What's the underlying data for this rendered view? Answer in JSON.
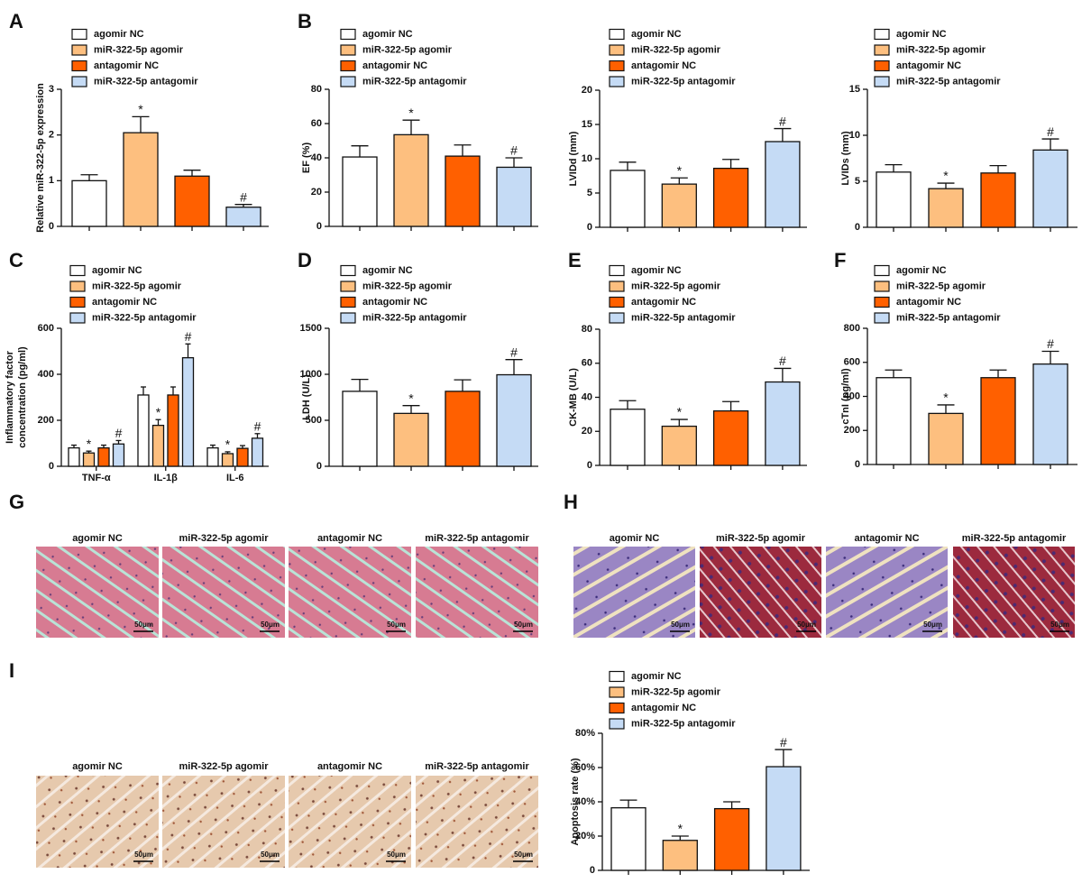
{
  "chart_data": [
    {
      "type": "bar",
      "panel": "A",
      "ylabel": [
        "Relative miR-322-5p expression"
      ],
      "legend": [
        "agomir NC",
        "miR-322-5p agomir",
        "antagomir NC",
        "miR-322-5p antagomir"
      ],
      "colors": [
        "#ffffff",
        "#fdbf7f",
        "#ff6000",
        "#c5dbf5"
      ],
      "values": [
        1.0,
        2.05,
        1.1,
        0.42
      ],
      "errors": [
        0.13,
        0.35,
        0.13,
        0.06
      ],
      "annotations": [
        null,
        "*",
        null,
        "#"
      ],
      "ylim": [
        0,
        3
      ],
      "yticks": [
        0,
        1,
        2,
        3
      ]
    },
    {
      "type": "bar",
      "panel": "B",
      "ylabel": [
        "EF (%)"
      ],
      "legend": [
        "agomir NC",
        "miR-322-5p agomir",
        "antagomir NC",
        "miR-322-5p antagomir"
      ],
      "colors": [
        "#ffffff",
        "#fdbf7f",
        "#ff6000",
        "#c5dbf5"
      ],
      "values": [
        40.5,
        53.5,
        41,
        34.5
      ],
      "errors": [
        6.5,
        8.5,
        6.5,
        5.5
      ],
      "annotations": [
        null,
        "*",
        null,
        "#"
      ],
      "ylim": [
        0,
        80
      ],
      "yticks": [
        0,
        20,
        40,
        60,
        80
      ]
    },
    {
      "type": "bar",
      "ylabel": [
        "LVIDd (mm)"
      ],
      "legend": [
        "agomir NC",
        "miR-322-5p agomir",
        "antagomir NC",
        "miR-322-5p antagomir"
      ],
      "colors": [
        "#ffffff",
        "#fdbf7f",
        "#ff6000",
        "#c5dbf5"
      ],
      "values": [
        8.3,
        6.3,
        8.6,
        12.5
      ],
      "errors": [
        1.2,
        0.9,
        1.3,
        1.9
      ],
      "annotations": [
        null,
        "*",
        null,
        "#"
      ],
      "ylim": [
        0,
        20
      ],
      "yticks": [
        0,
        5,
        10,
        15,
        20
      ]
    },
    {
      "type": "bar",
      "ylabel": [
        "LVIDs (mm)"
      ],
      "legend": [
        "agomir NC",
        "miR-322-5p agomir",
        "antagomir NC",
        "miR-322-5p antagomir"
      ],
      "colors": [
        "#ffffff",
        "#fdbf7f",
        "#ff6000",
        "#c5dbf5"
      ],
      "values": [
        6.0,
        4.2,
        5.9,
        8.4
      ],
      "errors": [
        0.8,
        0.6,
        0.8,
        1.2
      ],
      "annotations": [
        null,
        "*",
        null,
        "#"
      ],
      "ylim": [
        0,
        15
      ],
      "yticks": [
        0,
        5,
        10,
        15
      ]
    },
    {
      "type": "grouped",
      "panel": "C",
      "ylabel": [
        "Inflammatory factor",
        "concentration (pg/ml)"
      ],
      "categories": [
        "TNF-α",
        "IL-1β",
        "IL-6"
      ],
      "series": [
        {
          "name": "agomir NC",
          "color": "#ffffff",
          "values": [
            80,
            310,
            80
          ],
          "errors": [
            12,
            35,
            12
          ],
          "annotations": [
            null,
            null,
            null
          ]
        },
        {
          "name": "miR-322-5p agomir",
          "color": "#fdbf7f",
          "values": [
            58,
            178,
            55
          ],
          "errors": [
            8,
            25,
            8
          ],
          "annotations": [
            "*",
            "*",
            "*"
          ]
        },
        {
          "name": "antagomir NC",
          "color": "#ff6000",
          "values": [
            80,
            310,
            78
          ],
          "errors": [
            12,
            35,
            12
          ],
          "annotations": [
            null,
            null,
            null
          ]
        },
        {
          "name": "miR-322-5p antagomir",
          "color": "#c5dbf5",
          "values": [
            97,
            472,
            122
          ],
          "errors": [
            15,
            60,
            20
          ],
          "annotations": [
            "#",
            "#",
            "#"
          ]
        }
      ],
      "ylim": [
        0,
        600
      ],
      "yticks": [
        0,
        200,
        400,
        600
      ]
    },
    {
      "type": "bar",
      "panel": "D",
      "ylabel": [
        "LDH (U/L)"
      ],
      "legend": [
        "agomir NC",
        "miR-322-5p agomir",
        "antagomir NC",
        "miR-322-5p antagomir"
      ],
      "colors": [
        "#ffffff",
        "#fdbf7f",
        "#ff6000",
        "#c5dbf5"
      ],
      "values": [
        815,
        575,
        815,
        995
      ],
      "errors": [
        130,
        85,
        125,
        165
      ],
      "annotations": [
        null,
        "*",
        null,
        "#"
      ],
      "ylim": [
        0,
        1500
      ],
      "yticks": [
        0,
        500,
        1000,
        1500
      ]
    },
    {
      "type": "bar",
      "panel": "E",
      "ylabel": [
        "CK-MB (U/L)"
      ],
      "legend": [
        "agomir NC",
        "miR-322-5p agomir",
        "antagomir NC",
        "miR-322-5p antagomir"
      ],
      "colors": [
        "#ffffff",
        "#fdbf7f",
        "#ff6000",
        "#c5dbf5"
      ],
      "values": [
        33,
        23,
        32,
        49
      ],
      "errors": [
        5,
        4,
        5.5,
        8
      ],
      "annotations": [
        null,
        "*",
        null,
        "#"
      ],
      "ylim": [
        0,
        80
      ],
      "yticks": [
        0,
        20,
        40,
        60,
        80
      ]
    },
    {
      "type": "bar",
      "panel": "F",
      "ylabel": [
        "cTnI (pg/ml)"
      ],
      "legend": [
        "agomir NC",
        "miR-322-5p agomir",
        "antagomir NC",
        "miR-322-5p antagomir"
      ],
      "colors": [
        "#ffffff",
        "#fdbf7f",
        "#ff6000",
        "#c5dbf5"
      ],
      "values": [
        510,
        300,
        510,
        590
      ],
      "errors": [
        45,
        50,
        45,
        75
      ],
      "annotations": [
        null,
        "*",
        null,
        "#"
      ],
      "ylim": [
        0,
        800
      ],
      "yticks": [
        0,
        200,
        400,
        600,
        800
      ]
    },
    {
      "type": "bar",
      "ylabel": [
        "Apoptosis rate (%)"
      ],
      "legend": [
        "agomir NC",
        "miR-322-5p agomir",
        "antagomir NC",
        "miR-322-5p antagomir"
      ],
      "colors": [
        "#ffffff",
        "#fdbf7f",
        "#ff6000",
        "#c5dbf5"
      ],
      "values": [
        36.5,
        17.5,
        36,
        60.5
      ],
      "errors": [
        4.5,
        2.5,
        4,
        10
      ],
      "annotations": [
        null,
        "*",
        null,
        "#"
      ],
      "ylim": [
        0,
        80
      ],
      "yticks": [
        0,
        {
          "value": 20,
          "label": "20%"
        },
        {
          "value": 40,
          "label": "40%"
        },
        {
          "value": 60,
          "label": "60%"
        },
        {
          "value": 80,
          "label": "80%"
        }
      ]
    }
  ],
  "image_panels": [
    {
      "panel": "G",
      "labels": [
        "agomir NC",
        "miR-322-5p agomir",
        "antagomir NC",
        "miR-322-5p antagomir"
      ],
      "scale_bar": "50μm"
    },
    {
      "panel": "H",
      "labels": [
        "agomir NC",
        "miR-322-5p agomir",
        "antagomir NC",
        "miR-322-5p antagomir"
      ],
      "scale_bar": "50μm"
    },
    {
      "panel": "I",
      "labels": [
        "agomir NC",
        "miR-322-5p agomir",
        "antagomir NC",
        "miR-322-5p antagomir"
      ],
      "scale_bar": "50μm"
    }
  ]
}
